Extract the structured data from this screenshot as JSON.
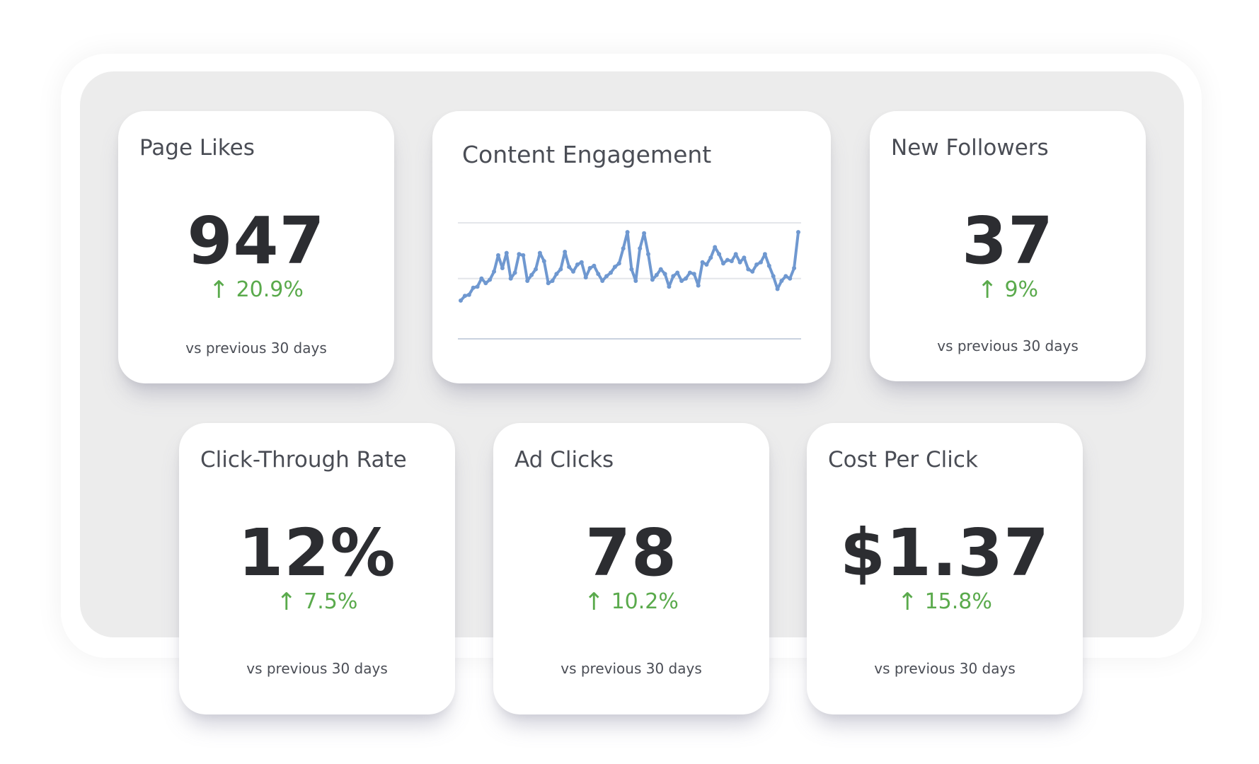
{
  "cards": {
    "page_likes": {
      "title": "Page Likes",
      "value": "947",
      "change_arrow": "↑",
      "change": "20.9%",
      "sub": "vs previous 30 days"
    },
    "new_followers": {
      "title": "New Followers",
      "value": "37",
      "change_arrow": "↑",
      "change": "9%",
      "sub": "vs previous 30 days"
    },
    "ctr": {
      "title": "Click-Through Rate",
      "value": "12%",
      "change_arrow": "↑",
      "change": "7.5%",
      "sub": "vs previous 30 days"
    },
    "ad_clicks": {
      "title": "Ad Clicks",
      "value": "78",
      "change_arrow": "↑",
      "change": "10.2%",
      "sub": "vs previous 30 days"
    },
    "cpc": {
      "title": "Cost Per Click",
      "value": "$1.37",
      "change_arrow": "↑",
      "change": "15.8%",
      "sub": "vs previous 30 days"
    }
  },
  "engagement": {
    "title": "Content Engagement"
  },
  "colors": {
    "positive": "#5aaa4c",
    "line": "#6f98d0",
    "grid": "#e4e6ea",
    "baseline": "#c9d2df"
  },
  "chart_data": {
    "type": "line",
    "title": "Content Engagement",
    "xlabel": "",
    "ylabel": "",
    "ylim": [
      0,
      100
    ],
    "grid": true,
    "series": [
      {
        "name": "Content Engagement",
        "values": [
          33,
          37,
          38,
          44,
          45,
          52,
          48,
          51,
          58,
          72,
          61,
          74,
          52,
          57,
          73,
          72,
          50,
          55,
          60,
          74,
          67,
          48,
          50,
          56,
          60,
          75,
          62,
          58,
          64,
          66,
          53,
          61,
          63,
          56,
          50,
          54,
          57,
          62,
          65,
          78,
          92,
          60,
          50,
          78,
          91,
          73,
          51,
          55,
          60,
          56,
          45,
          54,
          57,
          50,
          52,
          57,
          56,
          46,
          66,
          64,
          70,
          79,
          73,
          65,
          68,
          67,
          73,
          66,
          70,
          60,
          58,
          64,
          66,
          73,
          63,
          54,
          43,
          50,
          54,
          52,
          61,
          92
        ]
      }
    ]
  }
}
